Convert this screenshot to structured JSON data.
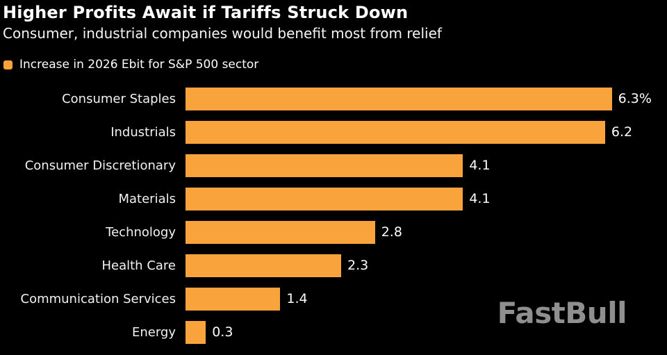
{
  "header": {
    "title": "Higher Profits Await if Tariffs Struck Down",
    "subtitle": "Consumer, industrial companies would benefit most from relief"
  },
  "legend": {
    "label": "Increase in 2026 Ebit for S&P 500 sector",
    "swatch_color": "#F9A33C"
  },
  "watermark": "FastBull",
  "colors": {
    "background": "#000000",
    "bar": "#F9A33C",
    "text": "#FFFFFF",
    "category_text": "#F2F2F2",
    "watermark": "#8F8F8F"
  },
  "chart_data": {
    "type": "bar",
    "orientation": "horizontal",
    "title": "Higher Profits Await if Tariffs Struck Down",
    "subtitle": "Consumer, industrial companies would benefit most from relief",
    "series_name": "Increase in 2026 Ebit for S&P 500 sector",
    "categories": [
      "Consumer Staples",
      "Industrials",
      "Consumer Discretionary",
      "Materials",
      "Technology",
      "Health Care",
      "Communication Services",
      "Energy"
    ],
    "values": [
      6.3,
      6.2,
      4.1,
      4.1,
      2.8,
      2.3,
      1.4,
      0.3
    ],
    "value_labels": [
      "6.3%",
      "6.2",
      "4.1",
      "4.1",
      "2.8",
      "2.3",
      "1.4",
      "0.3"
    ],
    "unit": "%",
    "xlim": [
      0,
      6.5
    ],
    "grid": false,
    "legend_position": "top-left"
  }
}
